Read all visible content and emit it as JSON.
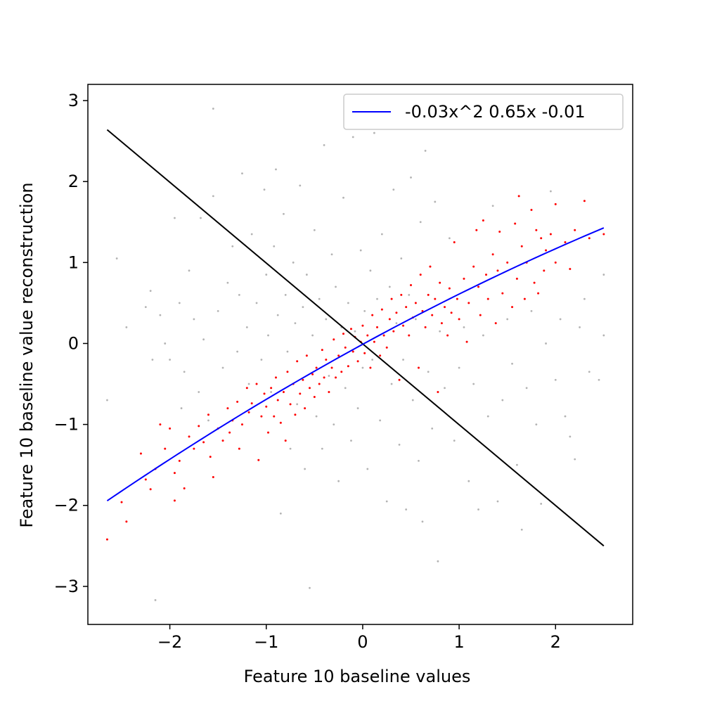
{
  "chart_data": {
    "type": "scatter",
    "title": "",
    "xlabel": "Feature 10 baseline values",
    "ylabel": "Feature 10 baseline  value reconstruction",
    "xlim": [
      -2.85,
      2.8
    ],
    "ylim": [
      -3.47,
      3.2
    ],
    "xticks": [
      -2,
      -1,
      0,
      1,
      2
    ],
    "yticks": [
      -3,
      -2,
      -1,
      0,
      1,
      2,
      3
    ],
    "xtick_labels": [
      "−2",
      "−1",
      "0",
      "1",
      "2"
    ],
    "ytick_labels": [
      "−3",
      "−2",
      "−1",
      "0",
      "1",
      "2",
      "3"
    ],
    "grid": false,
    "legend_position": "top-right",
    "colors": {
      "fit_line": "#0000ff",
      "reference_line": "#000000",
      "highlight_points": "#ff0000",
      "background_points": "#999999"
    },
    "fit": {
      "label": "-0.03x^2 0.65x -0.01",
      "coefficients": [
        -0.03,
        0.65,
        -0.01
      ],
      "x_range": [
        -2.65,
        2.5
      ]
    },
    "reference_line": {
      "points": [
        [
          -2.65,
          2.64
        ],
        [
          2.5,
          -2.5
        ]
      ]
    },
    "highlight_points": [
      [
        -2.65,
        -2.42
      ],
      [
        -2.45,
        -2.2
      ],
      [
        -2.5,
        -1.96
      ],
      [
        -2.3,
        -1.36
      ],
      [
        -2.25,
        -1.68
      ],
      [
        -2.2,
        -1.8
      ],
      [
        -2.15,
        -1.55
      ],
      [
        -2.1,
        -1.0
      ],
      [
        -2.05,
        -1.3
      ],
      [
        -2.0,
        -1.05
      ],
      [
        -1.95,
        -1.6
      ],
      [
        -1.95,
        -1.94
      ],
      [
        -1.9,
        -1.45
      ],
      [
        -1.85,
        -1.79
      ],
      [
        -1.8,
        -1.15
      ],
      [
        -1.75,
        -1.3
      ],
      [
        -1.7,
        -1.02
      ],
      [
        -1.65,
        -1.22
      ],
      [
        -1.6,
        -0.88
      ],
      [
        -1.58,
        -1.4
      ],
      [
        -1.55,
        -1.65
      ],
      [
        -1.5,
        -1.05
      ],
      [
        -1.45,
        -1.2
      ],
      [
        -1.4,
        -0.8
      ],
      [
        -1.38,
        -1.1
      ],
      [
        -1.35,
        -0.95
      ],
      [
        -1.3,
        -0.72
      ],
      [
        -1.28,
        -1.3
      ],
      [
        -1.25,
        -1.0
      ],
      [
        -1.2,
        -0.55
      ],
      [
        -1.18,
        -0.85
      ],
      [
        -1.15,
        -0.74
      ],
      [
        -1.1,
        -0.5
      ],
      [
        -1.08,
        -1.44
      ],
      [
        -1.05,
        -0.9
      ],
      [
        -1.02,
        -0.62
      ],
      [
        -1.0,
        -0.78
      ],
      [
        -0.98,
        -1.1
      ],
      [
        -0.95,
        -0.55
      ],
      [
        -0.92,
        -0.9
      ],
      [
        -0.9,
        -0.42
      ],
      [
        -0.88,
        -0.7
      ],
      [
        -0.85,
        -0.98
      ],
      [
        -0.82,
        -0.6
      ],
      [
        -0.8,
        -1.2
      ],
      [
        -0.78,
        -0.35
      ],
      [
        -0.75,
        -0.75
      ],
      [
        -0.72,
        -0.5
      ],
      [
        -0.7,
        -0.88
      ],
      [
        -0.68,
        -0.22
      ],
      [
        -0.65,
        -0.62
      ],
      [
        -0.62,
        -0.45
      ],
      [
        -0.6,
        -0.8
      ],
      [
        -0.58,
        -0.15
      ],
      [
        -0.55,
        -0.55
      ],
      [
        -0.52,
        -0.38
      ],
      [
        -0.5,
        -0.66
      ],
      [
        -0.48,
        -0.3
      ],
      [
        -0.45,
        -0.5
      ],
      [
        -0.42,
        -0.08
      ],
      [
        -0.4,
        -0.42
      ],
      [
        -0.38,
        -0.2
      ],
      [
        -0.35,
        -0.6
      ],
      [
        -0.32,
        -0.3
      ],
      [
        -0.3,
        0.05
      ],
      [
        -0.28,
        -0.42
      ],
      [
        -0.25,
        -0.15
      ],
      [
        -0.22,
        -0.35
      ],
      [
        -0.2,
        0.12
      ],
      [
        -0.18,
        -0.05
      ],
      [
        -0.15,
        -0.28
      ],
      [
        -0.12,
        0.18
      ],
      [
        -0.1,
        -0.1
      ],
      [
        -0.08,
        0.08
      ],
      [
        -0.05,
        -0.22
      ],
      [
        -0.02,
        0.02
      ],
      [
        0.0,
        0.22
      ],
      [
        0.02,
        -0.12
      ],
      [
        0.05,
        0.1
      ],
      [
        0.08,
        -0.3
      ],
      [
        0.1,
        0.35
      ],
      [
        0.12,
        0.02
      ],
      [
        0.15,
        0.2
      ],
      [
        0.18,
        -0.15
      ],
      [
        0.2,
        0.42
      ],
      [
        0.22,
        0.1
      ],
      [
        0.25,
        -0.05
      ],
      [
        0.28,
        0.3
      ],
      [
        0.3,
        0.55
      ],
      [
        0.32,
        0.15
      ],
      [
        0.35,
        0.38
      ],
      [
        0.38,
        -0.45
      ],
      [
        0.4,
        0.6
      ],
      [
        0.42,
        0.22
      ],
      [
        0.45,
        0.45
      ],
      [
        0.48,
        0.1
      ],
      [
        0.5,
        0.72
      ],
      [
        0.52,
        0.32
      ],
      [
        0.55,
        0.5
      ],
      [
        0.58,
        -0.3
      ],
      [
        0.6,
        0.85
      ],
      [
        0.62,
        0.4
      ],
      [
        0.65,
        0.2
      ],
      [
        0.68,
        0.6
      ],
      [
        0.7,
        0.95
      ],
      [
        0.72,
        0.35
      ],
      [
        0.75,
        0.55
      ],
      [
        0.78,
        -0.6
      ],
      [
        0.8,
        0.75
      ],
      [
        0.82,
        0.25
      ],
      [
        0.85,
        0.45
      ],
      [
        0.88,
        0.1
      ],
      [
        0.9,
        0.68
      ],
      [
        0.92,
        0.38
      ],
      [
        0.95,
        1.25
      ],
      [
        0.98,
        0.55
      ],
      [
        1.0,
        0.3
      ],
      [
        1.05,
        0.8
      ],
      [
        1.08,
        0.02
      ],
      [
        1.1,
        0.5
      ],
      [
        1.15,
        0.95
      ],
      [
        1.18,
        1.4
      ],
      [
        1.2,
        0.7
      ],
      [
        1.22,
        0.35
      ],
      [
        1.25,
        1.52
      ],
      [
        1.28,
        0.85
      ],
      [
        1.3,
        0.55
      ],
      [
        1.35,
        1.1
      ],
      [
        1.38,
        0.25
      ],
      [
        1.4,
        0.9
      ],
      [
        1.42,
        1.38
      ],
      [
        1.45,
        0.62
      ],
      [
        1.5,
        1.0
      ],
      [
        1.55,
        0.45
      ],
      [
        1.58,
        1.48
      ],
      [
        1.6,
        0.8
      ],
      [
        1.62,
        1.82
      ],
      [
        1.65,
        1.2
      ],
      [
        1.68,
        0.55
      ],
      [
        1.7,
        1.0
      ],
      [
        1.75,
        1.65
      ],
      [
        1.78,
        0.75
      ],
      [
        1.8,
        1.4
      ],
      [
        1.82,
        0.62
      ],
      [
        1.85,
        1.3
      ],
      [
        1.88,
        0.9
      ],
      [
        1.9,
        1.15
      ],
      [
        1.95,
        1.35
      ],
      [
        2.0,
        1.0
      ],
      [
        2.0,
        1.72
      ],
      [
        2.1,
        1.25
      ],
      [
        2.15,
        0.92
      ],
      [
        2.2,
        1.4
      ],
      [
        2.3,
        1.76
      ],
      [
        2.35,
        1.3
      ],
      [
        2.5,
        1.35
      ]
    ],
    "background_points": [
      [
        -2.65,
        -0.7
      ],
      [
        -2.55,
        1.05
      ],
      [
        -2.45,
        0.2
      ],
      [
        -2.25,
        0.45
      ],
      [
        -2.2,
        0.65
      ],
      [
        -2.18,
        -0.2
      ],
      [
        -2.15,
        -3.17
      ],
      [
        -2.1,
        0.35
      ],
      [
        -2.05,
        0.0
      ],
      [
        -2.0,
        -0.2
      ],
      [
        -1.95,
        1.55
      ],
      [
        -1.9,
        0.5
      ],
      [
        -1.88,
        -0.8
      ],
      [
        -1.85,
        -0.35
      ],
      [
        -1.8,
        0.9
      ],
      [
        -1.75,
        0.3
      ],
      [
        -1.7,
        -0.6
      ],
      [
        -1.68,
        1.55
      ],
      [
        -1.65,
        0.05
      ],
      [
        -1.6,
        -0.95
      ],
      [
        -1.55,
        2.9
      ],
      [
        -1.55,
        1.82
      ],
      [
        -1.5,
        0.4
      ],
      [
        -1.45,
        -0.3
      ],
      [
        -1.4,
        0.75
      ],
      [
        -1.35,
        1.2
      ],
      [
        -1.3,
        -0.1
      ],
      [
        -1.28,
        0.6
      ],
      [
        -1.25,
        2.1
      ],
      [
        -1.2,
        0.2
      ],
      [
        -1.18,
        -0.5
      ],
      [
        -1.15,
        1.35
      ],
      [
        -1.1,
        0.5
      ],
      [
        -1.05,
        -0.2
      ],
      [
        -1.02,
        1.9
      ],
      [
        -1.0,
        0.85
      ],
      [
        -0.98,
        0.1
      ],
      [
        -0.95,
        -0.6
      ],
      [
        -0.92,
        1.2
      ],
      [
        -0.9,
        2.15
      ],
      [
        -0.88,
        0.35
      ],
      [
        -0.85,
        -2.1
      ],
      [
        -0.82,
        1.6
      ],
      [
        -0.8,
        0.6
      ],
      [
        -0.78,
        -0.1
      ],
      [
        -0.75,
        -1.3
      ],
      [
        -0.72,
        1.0
      ],
      [
        -0.7,
        0.25
      ],
      [
        -0.68,
        -0.75
      ],
      [
        -0.65,
        1.95
      ],
      [
        -0.62,
        0.45
      ],
      [
        -0.6,
        -1.55
      ],
      [
        -0.58,
        0.85
      ],
      [
        -0.55,
        -3.02
      ],
      [
        -0.52,
        0.1
      ],
      [
        -0.5,
        1.4
      ],
      [
        -0.48,
        -0.9
      ],
      [
        -0.45,
        0.55
      ],
      [
        -0.42,
        -1.3
      ],
      [
        -0.4,
        2.45
      ],
      [
        -0.38,
        0.3
      ],
      [
        -0.35,
        -0.4
      ],
      [
        -0.32,
        1.1
      ],
      [
        -0.3,
        -1.0
      ],
      [
        -0.28,
        0.7
      ],
      [
        -0.25,
        -1.7
      ],
      [
        -0.22,
        0.2
      ],
      [
        -0.2,
        1.8
      ],
      [
        -0.18,
        -0.55
      ],
      [
        -0.15,
        0.5
      ],
      [
        -0.12,
        -1.2
      ],
      [
        -0.1,
        2.55
      ],
      [
        -0.08,
        0.15
      ],
      [
        -0.05,
        -0.8
      ],
      [
        -0.02,
        1.15
      ],
      [
        0.0,
        -0.3
      ],
      [
        0.02,
        0.4
      ],
      [
        0.05,
        -1.55
      ],
      [
        0.08,
        0.9
      ],
      [
        0.1,
        -0.2
      ],
      [
        0.12,
        2.6
      ],
      [
        0.15,
        0.55
      ],
      [
        0.18,
        -0.95
      ],
      [
        0.2,
        1.35
      ],
      [
        0.22,
        0.1
      ],
      [
        0.25,
        -1.95
      ],
      [
        0.28,
        0.7
      ],
      [
        0.3,
        -0.5
      ],
      [
        0.32,
        1.9
      ],
      [
        0.35,
        0.25
      ],
      [
        0.38,
        -1.25
      ],
      [
        0.4,
        1.05
      ],
      [
        0.42,
        -0.2
      ],
      [
        0.45,
        -2.05
      ],
      [
        0.48,
        0.6
      ],
      [
        0.5,
        2.05
      ],
      [
        0.52,
        -0.7
      ],
      [
        0.55,
        0.3
      ],
      [
        0.58,
        -1.45
      ],
      [
        0.6,
        1.5
      ],
      [
        0.62,
        -2.2
      ],
      [
        0.65,
        2.38
      ],
      [
        0.68,
        -0.35
      ],
      [
        0.7,
        0.95
      ],
      [
        0.72,
        -1.05
      ],
      [
        0.75,
        1.75
      ],
      [
        0.78,
        -2.69
      ],
      [
        0.8,
        0.15
      ],
      [
        0.85,
        -0.55
      ],
      [
        0.9,
        1.3
      ],
      [
        0.95,
        -1.2
      ],
      [
        1.0,
        -0.3
      ],
      [
        1.05,
        0.2
      ],
      [
        1.1,
        -1.7
      ],
      [
        1.15,
        -0.5
      ],
      [
        1.2,
        -2.05
      ],
      [
        1.25,
        0.1
      ],
      [
        1.3,
        -0.9
      ],
      [
        1.35,
        1.7
      ],
      [
        1.4,
        -1.95
      ],
      [
        1.45,
        -0.7
      ],
      [
        1.5,
        0.3
      ],
      [
        1.55,
        -0.25
      ],
      [
        1.6,
        -1.5
      ],
      [
        1.65,
        -2.3
      ],
      [
        1.7,
        -0.55
      ],
      [
        1.75,
        0.4
      ],
      [
        1.8,
        -1.0
      ],
      [
        1.85,
        -1.98
      ],
      [
        1.9,
        0.0
      ],
      [
        1.95,
        1.88
      ],
      [
        2.0,
        -0.45
      ],
      [
        2.05,
        0.3
      ],
      [
        2.1,
        -0.9
      ],
      [
        2.15,
        -1.15
      ],
      [
        2.2,
        -1.43
      ],
      [
        2.25,
        0.2
      ],
      [
        2.3,
        0.55
      ],
      [
        2.35,
        -0.35
      ],
      [
        2.45,
        -0.45
      ],
      [
        2.5,
        0.1
      ],
      [
        2.5,
        0.85
      ]
    ]
  }
}
